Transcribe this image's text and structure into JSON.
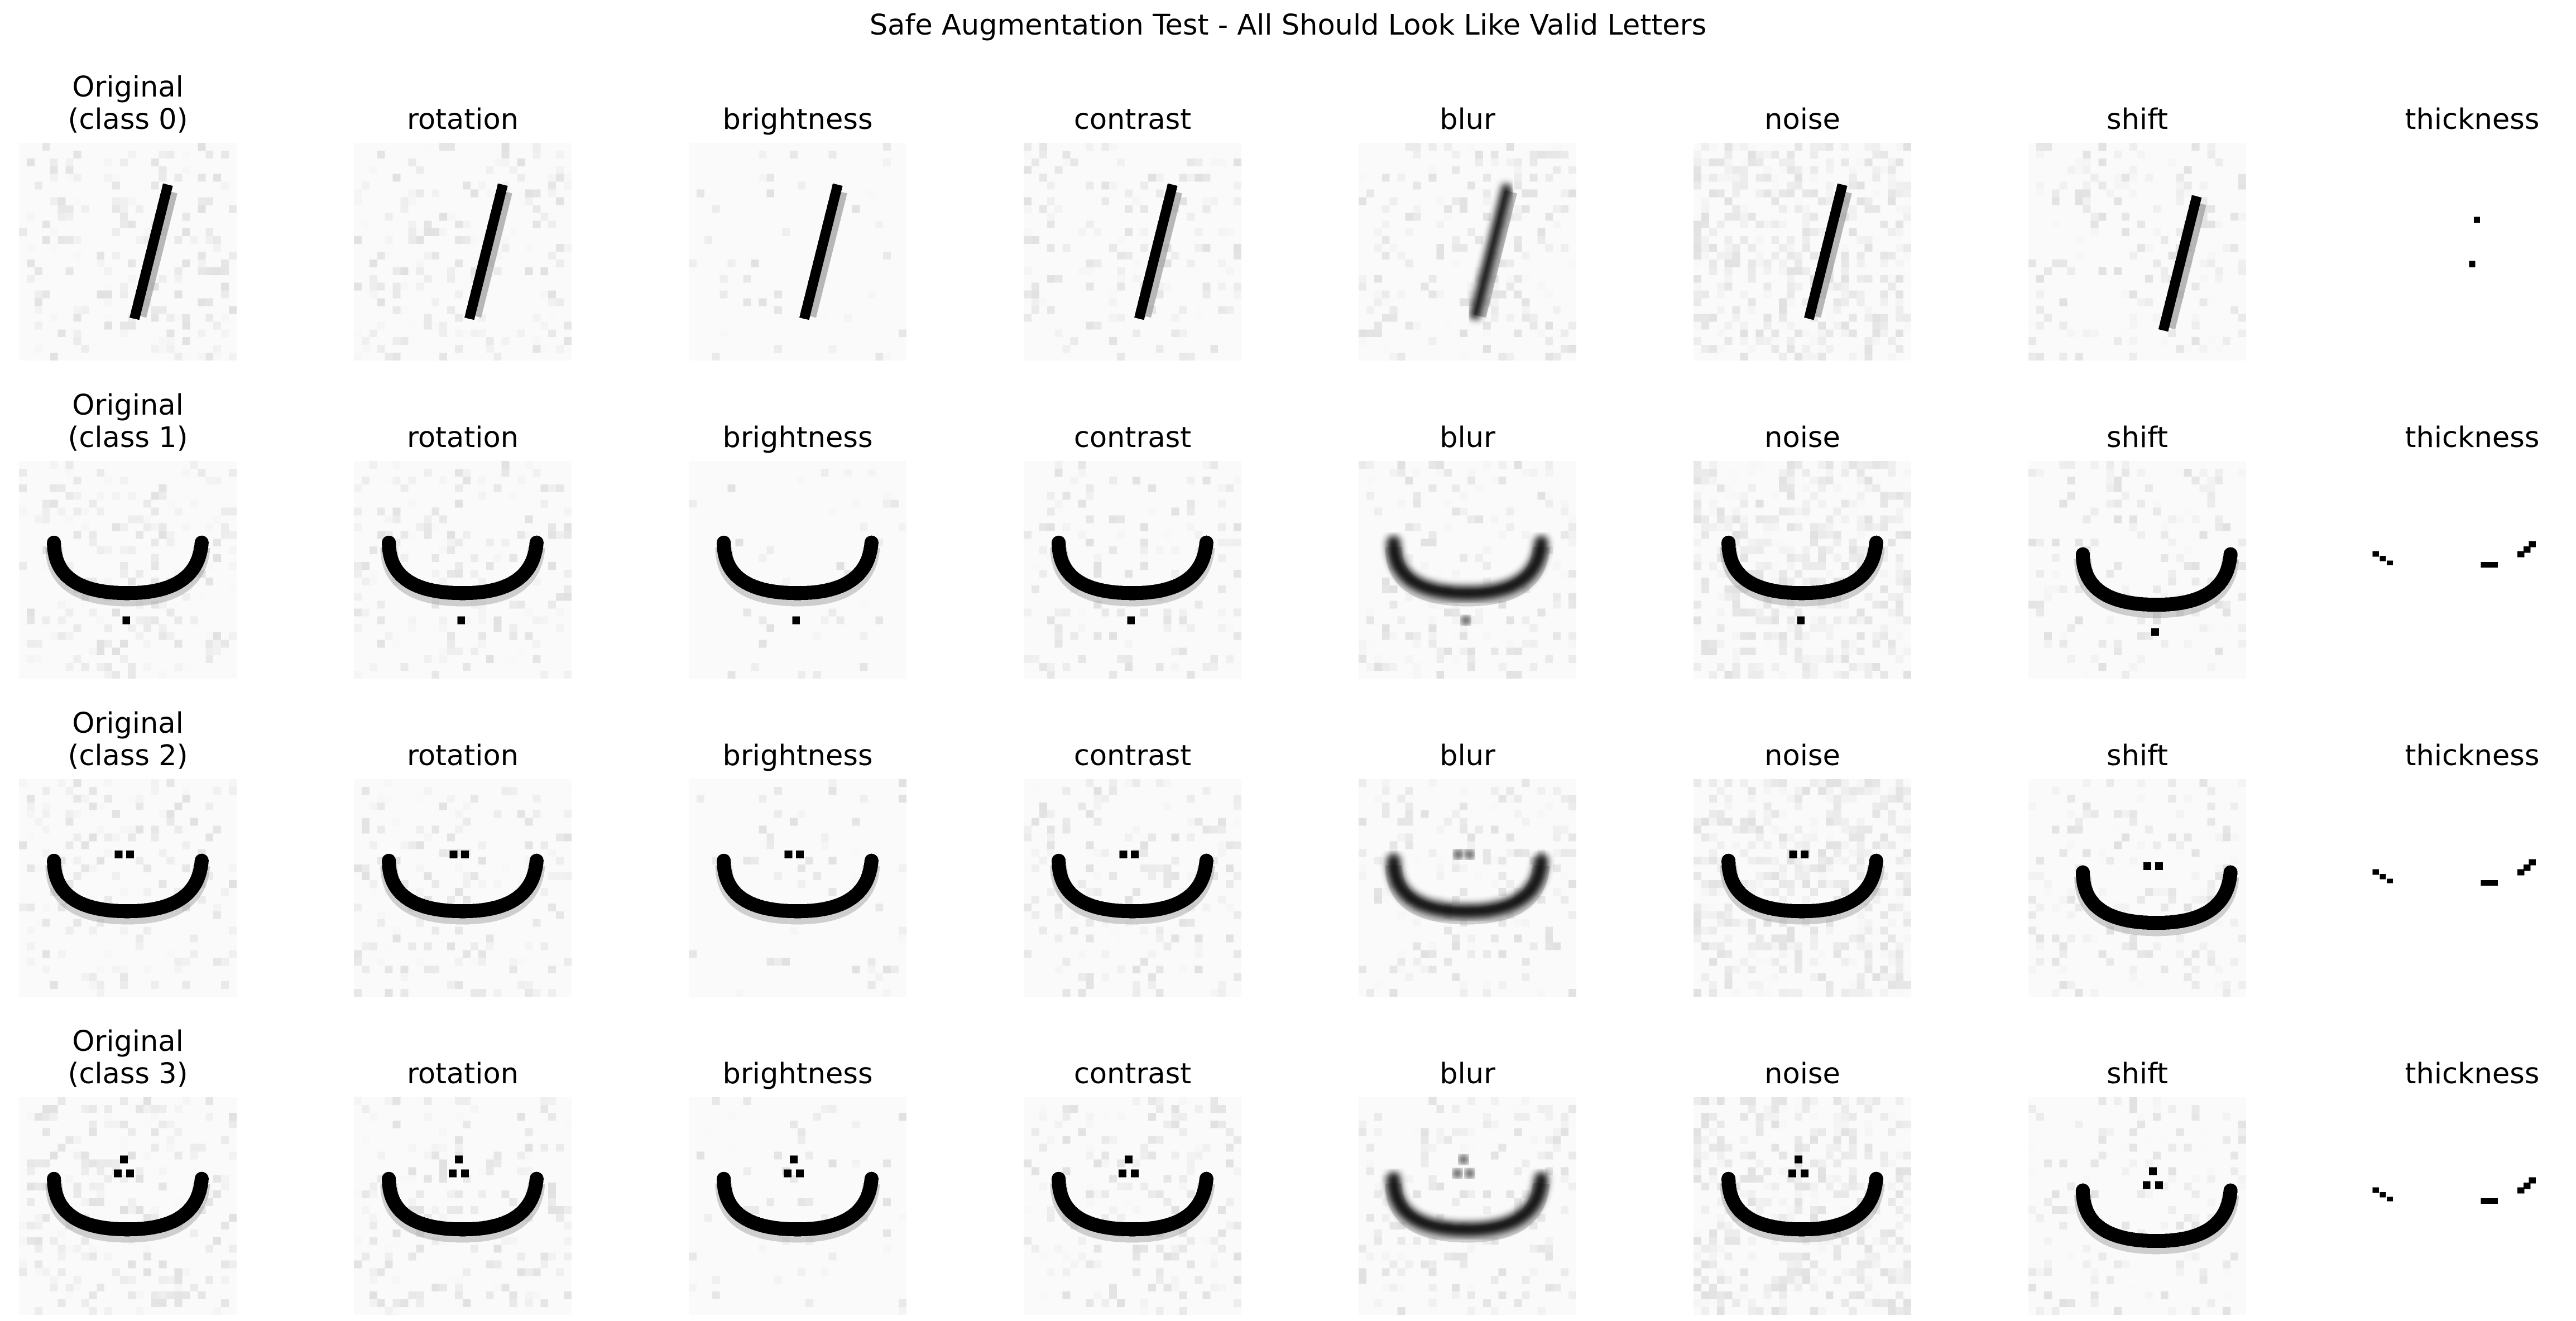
{
  "figure_title": "Safe Augmentation Test - All Should Look Like Valid Letters",
  "columns": [
    "rotation",
    "brightness",
    "contrast",
    "blur",
    "noise",
    "shift",
    "thickness"
  ],
  "rows": [
    {
      "title_line1": "Original",
      "title_line2": "(class 0)",
      "glyph": "alif"
    },
    {
      "title_line1": "Original",
      "title_line2": "(class 1)",
      "glyph": "ba"
    },
    {
      "title_line1": "Original",
      "title_line2": "(class 2)",
      "glyph": "ta"
    },
    {
      "title_line1": "Original",
      "title_line2": "(class 3)",
      "glyph": "tha"
    }
  ],
  "colors": {
    "stroke": "#000000",
    "shadow": "#9a9a9a",
    "background": "#fafafa",
    "noise": "#e6e6e6"
  }
}
